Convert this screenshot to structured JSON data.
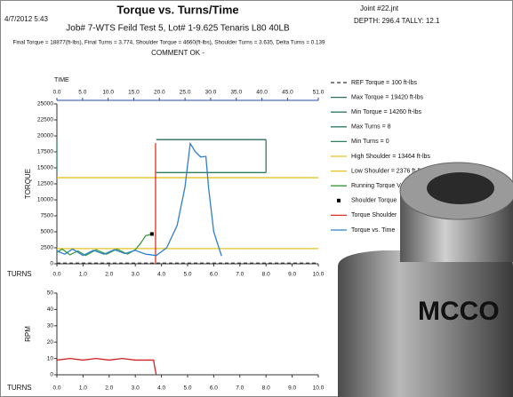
{
  "header": {
    "date": "4/7/2012 5:43",
    "title": "Torque vs. Turns/Time",
    "joint": "Joint #22.jnt",
    "depth": "DEPTH: 296.4  TALLY: 12.1",
    "job": "Job# 7-WTS Feild Test 5, Lot# 1-9.625 Tenaris L80 40LB",
    "summary": "Final Torque = 18877(ft-lbs), Final Turns = 3.774, Shoulder Torque = 4660(ft-lbs), Shoulder Turns = 3.635, Delta Turns = 0.139",
    "comment": "COMMENT OK -",
    "logo": "MCCO"
  },
  "chart_data": [
    {
      "type": "line",
      "x_label": "TURNS",
      "x2_label": "TIME",
      "y_label": "TORQUE",
      "legend": "right",
      "xlim": [
        0,
        10
      ],
      "xticks": [
        {
          "value": 0,
          "label": "0.0"
        },
        {
          "value": 1,
          "label": "1.0"
        },
        {
          "value": 2,
          "label": "2.0"
        },
        {
          "value": 3,
          "label": "3.0"
        },
        {
          "value": 4,
          "label": "4.0"
        },
        {
          "value": 5,
          "label": "5.0"
        },
        {
          "value": 6,
          "label": "6.0"
        },
        {
          "value": 7,
          "label": "7.0"
        },
        {
          "value": 8,
          "label": "8.0"
        },
        {
          "value": 9,
          "label": "9.0"
        },
        {
          "value": 10,
          "label": "10.0"
        }
      ],
      "x2lim": [
        0,
        51
      ],
      "x2ticks": [
        {
          "value": 0,
          "label": "0.0"
        },
        {
          "value": 5,
          "label": "5.0"
        },
        {
          "value": 10,
          "label": "10.0"
        },
        {
          "value": 15,
          "label": "15.0"
        },
        {
          "value": 20,
          "label": "20.0"
        },
        {
          "value": 25,
          "label": "25.0"
        },
        {
          "value": 30,
          "label": "30.0"
        },
        {
          "value": 35,
          "label": "35.0"
        },
        {
          "value": 40,
          "label": "40.0"
        },
        {
          "value": 45,
          "label": "45.0"
        },
        {
          "value": 51,
          "label": "51.0"
        }
      ],
      "ylim": [
        0,
        25000
      ],
      "yticks": [
        0,
        2500,
        5000,
        7500,
        10000,
        12500,
        15000,
        17500,
        20000,
        22500,
        25000
      ],
      "series": [
        {
          "name": "REF Torque = 100 ft-lbs",
          "color": "#333333",
          "dash": true,
          "x": [
            0,
            10
          ],
          "values": [
            100,
            100
          ]
        },
        {
          "name": "Max Torque = 19420 ft-lbs",
          "color": "#2f6e58",
          "x": [
            3.8,
            8
          ],
          "values": [
            19420,
            19420
          ]
        },
        {
          "name": "Min Torque = 14260 ft-lbs",
          "color": "#2f7d5c",
          "x": [
            3.8,
            8
          ],
          "values": [
            14260,
            14260
          ]
        },
        {
          "name": "Max Turns = 8",
          "color": "#2f7d5c",
          "x": [
            8,
            8
          ],
          "values": [
            14260,
            19420
          ]
        },
        {
          "name": "Min Turns = 0",
          "color": "#2f7d5c",
          "x": [
            0,
            0
          ],
          "values": [
            14260,
            19420
          ]
        },
        {
          "name": "High Shoulder = 13464 ft-lbs",
          "color": "#e8c020",
          "x": [
            0,
            10
          ],
          "values": [
            13464,
            13464
          ]
        },
        {
          "name": "Low Shoulder = 2376 ft-lbs",
          "color": "#e8c020",
          "x": [
            0,
            10
          ],
          "values": [
            2376,
            2376
          ]
        },
        {
          "name": "Running Torque Vs Turns",
          "color": "#3a9a3a",
          "x": [
            0,
            0.2,
            0.5,
            0.8,
            1.1,
            1.5,
            1.9,
            2.3,
            2.7,
            3.0,
            3.2,
            3.4,
            3.635
          ],
          "values": [
            1800,
            2300,
            1400,
            2000,
            1300,
            2200,
            1500,
            2300,
            1500,
            2200,
            3200,
            4400,
            4660
          ]
        },
        {
          "name": "Shoulder Torque",
          "color": "#000000",
          "marker": "square",
          "x": [
            3.635
          ],
          "values": [
            4660
          ]
        },
        {
          "name": "Torque Shoulder",
          "color": "#e03020",
          "x": [
            3.774,
            3.774
          ],
          "values": [
            0,
            18877
          ]
        },
        {
          "name": "Torque vs. Time",
          "color": "#2d7fd0",
          "x": [
            0,
            0.3,
            0.6,
            1.0,
            1.4,
            1.8,
            2.2,
            2.6,
            3.0,
            3.4,
            3.8,
            4.2,
            4.6,
            4.9,
            5.1,
            5.3,
            5.5,
            5.7,
            5.8,
            6.0,
            6.3
          ],
          "values": [
            2000,
            1500,
            2300,
            1300,
            2100,
            1500,
            2200,
            1600,
            2100,
            1500,
            1300,
            2500,
            6000,
            12000,
            18800,
            17500,
            16700,
            16800,
            12000,
            5000,
            1200
          ]
        }
      ]
    },
    {
      "type": "line",
      "x_label": "TURNS",
      "y_label": "RPM",
      "xlim": [
        0,
        10
      ],
      "xticks": [
        {
          "value": 0,
          "label": "0.0"
        },
        {
          "value": 1,
          "label": "1.0"
        },
        {
          "value": 2,
          "label": "2.0"
        },
        {
          "value": 3,
          "label": "3.0"
        },
        {
          "value": 4,
          "label": "4.0"
        },
        {
          "value": 5,
          "label": "5.0"
        },
        {
          "value": 6,
          "label": "6.0"
        },
        {
          "value": 7,
          "label": "7.0"
        },
        {
          "value": 8,
          "label": "8.0"
        },
        {
          "value": 9,
          "label": "9.0"
        },
        {
          "value": 10,
          "label": "10.0"
        }
      ],
      "ylim": [
        0,
        50
      ],
      "yticks": [
        0,
        10,
        20,
        30,
        40,
        50
      ],
      "series": [
        {
          "color": "#d02020",
          "x": [
            0,
            0.5,
            1,
            1.5,
            2,
            2.5,
            3,
            3.5,
            3.7,
            3.75,
            3.8
          ],
          "values": [
            9,
            10,
            9,
            10,
            9,
            10,
            9,
            9,
            9,
            4,
            0
          ]
        }
      ]
    }
  ]
}
